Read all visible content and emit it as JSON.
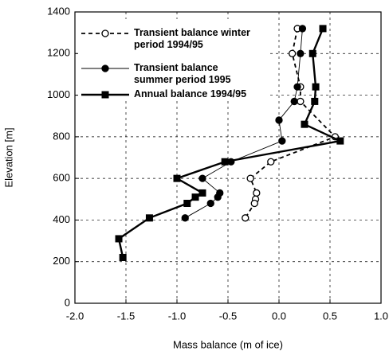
{
  "chart_data": {
    "type": "line",
    "x_label": "Mass balance (m of ice)",
    "y_label": "Elevation [m]",
    "xlim": [
      -2,
      1
    ],
    "xticks": [
      {
        "value": -2,
        "label": "-2.0"
      },
      -1.5,
      {
        "value": -1,
        "label": "-1.0"
      },
      -0.5,
      {
        "value": 0,
        "label": "0.0"
      },
      0.5,
      {
        "value": 1,
        "label": "1.0"
      }
    ],
    "ylim": [
      0,
      1400
    ],
    "yticks": [
      0,
      200,
      400,
      600,
      800,
      1000,
      1200,
      1400
    ],
    "grid": true,
    "legend": "upper left",
    "series": [
      {
        "name": "Transient balance winter period 1994/95",
        "color": "#000000",
        "style": "dashed",
        "marker": "open-circle",
        "x": [
          0.18,
          0.13,
          0.21,
          0.21,
          0.55,
          -0.08,
          -0.28,
          -0.22,
          -0.23,
          -0.24,
          -0.33
        ],
        "values": [
          1320,
          1200,
          1040,
          970,
          800,
          680,
          600,
          530,
          500,
          480,
          410
        ]
      },
      {
        "name": "Transient balance summer period 1995",
        "color": "#000000",
        "style": "thin",
        "marker": "filled-circle",
        "x": [
          0.23,
          0.21,
          0.18,
          0.15,
          0.0,
          0.03,
          -0.47,
          -0.75,
          -0.58,
          -0.6,
          -0.67,
          -0.92
        ],
        "values": [
          1320,
          1200,
          1040,
          970,
          880,
          780,
          680,
          600,
          530,
          510,
          480,
          410
        ]
      },
      {
        "name": "Annual balance 1994/95",
        "color": "#000000",
        "style": "thick",
        "marker": "square",
        "x": [
          0.43,
          0.33,
          0.36,
          0.35,
          0.25,
          0.6,
          -0.53,
          -1.0,
          -0.75,
          -0.82,
          -0.9,
          -1.27,
          -1.57,
          -1.53
        ],
        "values": [
          1320,
          1200,
          1040,
          970,
          860,
          780,
          680,
          600,
          530,
          510,
          480,
          410,
          310,
          220
        ]
      }
    ]
  }
}
